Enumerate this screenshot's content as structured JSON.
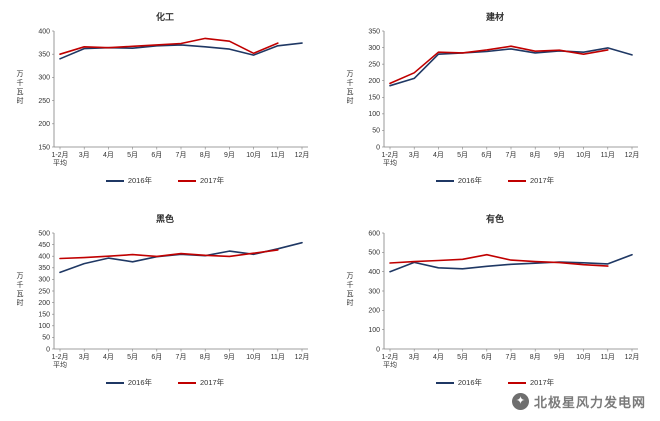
{
  "chart_data": [
    {
      "type": "line",
      "title": "化工",
      "ylabel": "万千瓦时",
      "ymin": 150,
      "ymax": 400,
      "ystep": 50,
      "categories": [
        "1-2月\n平均",
        "3月",
        "4月",
        "5月",
        "6月",
        "7月",
        "8月",
        "9月",
        "10月",
        "11月",
        "12月"
      ],
      "series": [
        {
          "name": "2016年",
          "color": "#1F3864",
          "values": [
            340,
            362,
            364,
            363,
            368,
            370,
            366,
            361,
            348,
            368,
            374
          ]
        },
        {
          "name": "2017年",
          "color": "#C00000",
          "values": [
            350,
            366,
            364,
            367,
            370,
            373,
            384,
            378,
            352,
            374
          ]
        }
      ],
      "legend_position": "bottom",
      "grid": false
    },
    {
      "type": "line",
      "title": "建材",
      "ylabel": "万千瓦时",
      "ymin": 0,
      "ymax": 350,
      "ystep": 50,
      "categories": [
        "1-2月\n平均",
        "3月",
        "4月",
        "5月",
        "6月",
        "7月",
        "8月",
        "9月",
        "10月",
        "11月",
        "12月"
      ],
      "series": [
        {
          "name": "2016年",
          "color": "#1F3864",
          "values": [
            185,
            207,
            280,
            284,
            288,
            296,
            284,
            290,
            286,
            299,
            278
          ]
        },
        {
          "name": "2017年",
          "color": "#C00000",
          "values": [
            192,
            224,
            286,
            284,
            293,
            304,
            289,
            292,
            280,
            293
          ]
        }
      ],
      "legend_position": "bottom",
      "grid": false
    },
    {
      "type": "line",
      "title": "黑色",
      "ylabel": "万千瓦时",
      "ymin": 0,
      "ymax": 500,
      "ystep": 50,
      "categories": [
        "1-2月\n平均",
        "3月",
        "4月",
        "5月",
        "6月",
        "7月",
        "8月",
        "9月",
        "10月",
        "11月",
        "12月"
      ],
      "series": [
        {
          "name": "2016年",
          "color": "#1F3864",
          "values": [
            330,
            368,
            392,
            376,
            398,
            408,
            402,
            422,
            408,
            432,
            458
          ]
        },
        {
          "name": "2017年",
          "color": "#C00000",
          "values": [
            390,
            394,
            400,
            407,
            399,
            411,
            404,
            399,
            413,
            427
          ]
        }
      ],
      "legend_position": "bottom",
      "grid": false
    },
    {
      "type": "line",
      "title": "有色",
      "ylabel": "万千瓦时",
      "ymin": 0,
      "ymax": 600,
      "ystep": 100,
      "categories": [
        "1-2月\n平均",
        "3月",
        "4月",
        "5月",
        "6月",
        "7月",
        "8月",
        "9月",
        "10月",
        "11月",
        "12月"
      ],
      "series": [
        {
          "name": "2016年",
          "color": "#1F3864",
          "values": [
            400,
            448,
            420,
            415,
            428,
            438,
            444,
            450,
            446,
            440,
            488
          ]
        },
        {
          "name": "2017年",
          "color": "#C00000",
          "values": [
            445,
            452,
            458,
            464,
            488,
            460,
            452,
            447,
            436,
            429
          ]
        }
      ],
      "legend_position": "bottom",
      "grid": false
    }
  ],
  "watermark": {
    "text": "北极星风力发电网",
    "icon": "✦"
  }
}
